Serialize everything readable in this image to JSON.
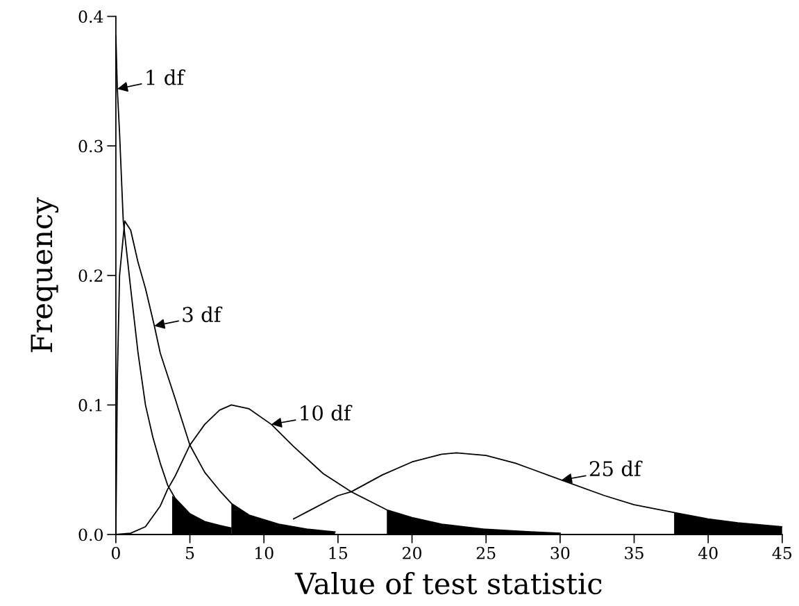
{
  "chart_data": {
    "type": "line",
    "xlabel": "Value of test statistic",
    "ylabel": "Frequency",
    "xlim": [
      0,
      45
    ],
    "ylim": [
      0,
      0.4
    ],
    "xticks": [
      0,
      5,
      10,
      15,
      20,
      25,
      30,
      35,
      40,
      45
    ],
    "yticks": [
      {
        "value": 0,
        "label": "0.0"
      },
      {
        "value": 0.1,
        "label": "0.1"
      },
      {
        "value": 0.2,
        "label": "0.2"
      },
      {
        "value": 0.3,
        "label": "0.3"
      },
      {
        "value": 0.4,
        "label": "0.4"
      }
    ],
    "grid": false,
    "legend": false,
    "series": [
      {
        "color": "#000000",
        "x": [
          0,
          0.1,
          0.25,
          0.5,
          1,
          1.5,
          2,
          2.5,
          3,
          3.5,
          4,
          5,
          6,
          7,
          7.8
        ],
        "values": [
          0.385,
          0.344,
          0.31,
          0.242,
          0.19,
          0.14,
          0.1,
          0.075,
          0.055,
          0.038,
          0.028,
          0.016,
          0.01,
          0.007,
          0.005
        ]
      },
      {
        "color": "#000000",
        "x": [
          0,
          0.1,
          0.25,
          0.6,
          1,
          1.5,
          2,
          2.6,
          3,
          4,
          5,
          6,
          7,
          7.8,
          9,
          11,
          13,
          14.8
        ],
        "values": [
          0,
          0.12,
          0.2,
          0.242,
          0.235,
          0.21,
          0.19,
          0.161,
          0.14,
          0.105,
          0.069,
          0.048,
          0.034,
          0.024,
          0.015,
          0.008,
          0.004,
          0.002
        ]
      },
      {
        "color": "#000000",
        "x": [
          0,
          1,
          2,
          3,
          3.5,
          4,
          5,
          6,
          7,
          7.8,
          9,
          10.5,
          12,
          14,
          15.9,
          18.3,
          20,
          22,
          25,
          28,
          30
        ],
        "values": [
          0,
          0.001,
          0.006,
          0.022,
          0.035,
          0.045,
          0.069,
          0.085,
          0.096,
          0.1,
          0.097,
          0.085,
          0.068,
          0.047,
          0.033,
          0.019,
          0.013,
          0.008,
          0.004,
          0.002,
          0.001
        ]
      },
      {
        "color": "#000000",
        "x": [
          12,
          13,
          15,
          15.9,
          18,
          20,
          22,
          23,
          25,
          27,
          30.1,
          33,
          35,
          37.7,
          40,
          42,
          45
        ],
        "values": [
          0.012,
          0.018,
          0.03,
          0.033,
          0.046,
          0.056,
          0.062,
          0.063,
          0.061,
          0.055,
          0.042,
          0.03,
          0.023,
          0.017,
          0.012,
          0.009,
          0.006
        ]
      },
      {
        "type": "area",
        "color": "#000000",
        "x": [
          3.8,
          4,
          5,
          6,
          7,
          7.8
        ],
        "values": [
          0.03,
          0.028,
          0.016,
          0.01,
          0.007,
          0.005
        ]
      },
      {
        "type": "area",
        "color": "#000000",
        "x": [
          7.8,
          9,
          11,
          13,
          14.8
        ],
        "values": [
          0.024,
          0.015,
          0.008,
          0.004,
          0.002
        ]
      },
      {
        "type": "area",
        "color": "#000000",
        "x": [
          18.3,
          20,
          22,
          25,
          28,
          30
        ],
        "values": [
          0.019,
          0.013,
          0.008,
          0.004,
          0.002,
          0.001
        ]
      },
      {
        "type": "area",
        "color": "#000000",
        "x": [
          37.7,
          40,
          42,
          45
        ],
        "values": [
          0.017,
          0.012,
          0.009,
          0.006
        ]
      }
    ],
    "annotations": [
      {
        "text": "1 df",
        "x": 0.1,
        "y": 0.344
      },
      {
        "text": "3 df",
        "x": 2.6,
        "y": 0.161
      },
      {
        "text": "10 df",
        "x": 10.5,
        "y": 0.085
      },
      {
        "text": "25 df",
        "x": 30.1,
        "y": 0.042
      }
    ]
  }
}
